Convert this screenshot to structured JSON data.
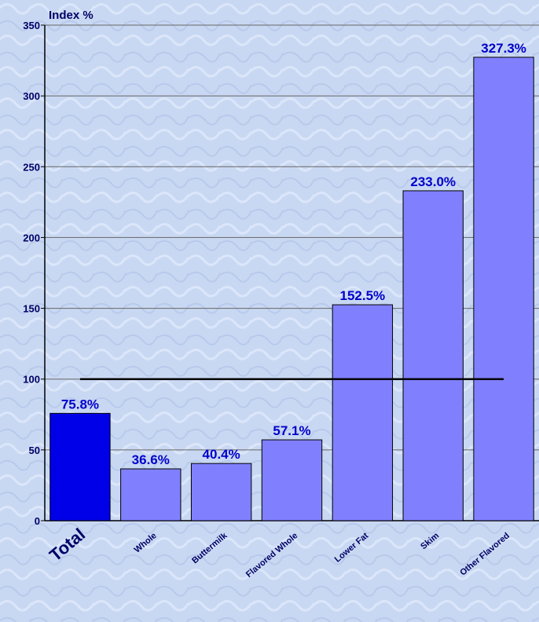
{
  "chart_data": {
    "type": "bar",
    "y_axis_label": "Index %",
    "categories": [
      "Total",
      "Whole",
      "Buttermilk",
      "Flavored Whole",
      "Lower Fat",
      "Skim",
      "Other Flavored"
    ],
    "values": [
      75.8,
      36.6,
      40.4,
      57.1,
      152.5,
      233.0,
      327.3
    ],
    "value_labels": [
      "75.8%",
      "36.6%",
      "40.4%",
      "57.1%",
      "152.5%",
      "233.0%",
      "327.3%"
    ],
    "colors": [
      "#0000e8",
      "#8080ff",
      "#8080ff",
      "#8080ff",
      "#8080ff",
      "#8080ff",
      "#8080ff"
    ],
    "ylim": [
      0,
      350
    ],
    "yticks": [
      0,
      50,
      100,
      150,
      200,
      250,
      300,
      350
    ],
    "reference_line": 100,
    "grid": true
  }
}
